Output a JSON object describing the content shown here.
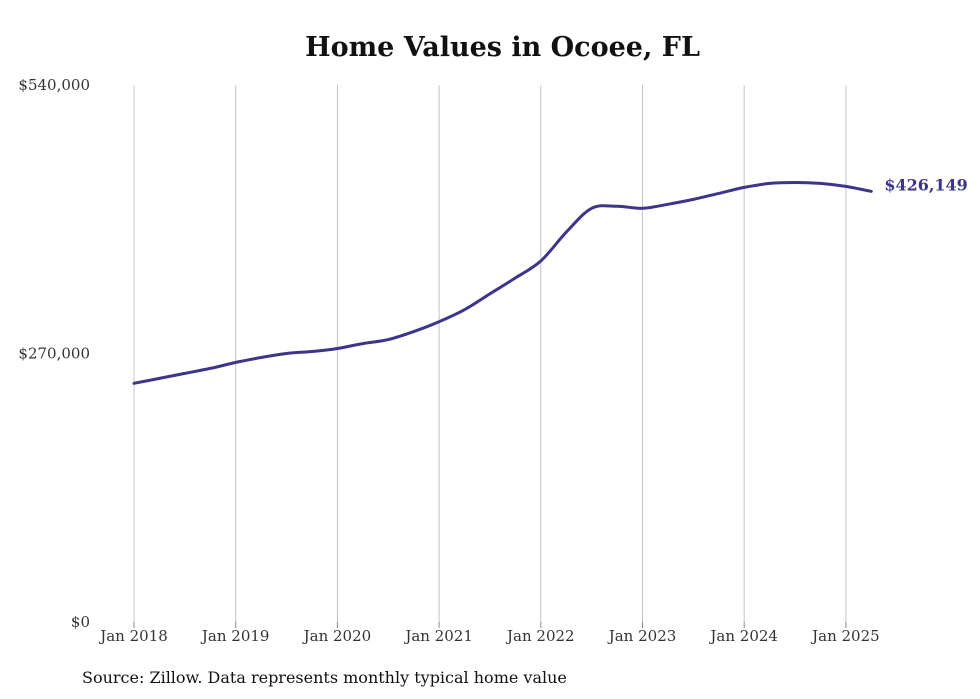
{
  "chart_data": {
    "type": "line",
    "title": "Home Values in Ocoee, FL",
    "source": "Source: Zillow. Data represents monthly typical home value",
    "ylim": [
      0,
      540000
    ],
    "y_ticks": [
      0,
      270000,
      540000
    ],
    "y_tick_labels": [
      "$0",
      "$270,000",
      "$540,000"
    ],
    "x_ticks": [
      "2018-01",
      "2019-01",
      "2020-01",
      "2021-01",
      "2022-01",
      "2023-01",
      "2024-01",
      "2025-01"
    ],
    "x_tick_labels": [
      "Jan 2018",
      "Jan 2019",
      "Jan 2020",
      "Jan 2021",
      "Jan 2022",
      "Jan 2023",
      "Jan 2024",
      "Jan 2025"
    ],
    "grid": "vertical",
    "line_color": "#3d348b",
    "end_label": "$426,149",
    "series": [
      {
        "x": [
          "2018-01",
          "2018-04",
          "2018-07",
          "2018-10",
          "2019-01",
          "2019-04",
          "2019-07",
          "2019-10",
          "2020-01",
          "2020-04",
          "2020-07",
          "2020-10",
          "2021-01",
          "2021-04",
          "2021-07",
          "2021-10",
          "2022-01",
          "2022-04",
          "2022-07",
          "2022-10",
          "2023-01",
          "2023-04",
          "2023-07",
          "2023-10",
          "2024-01",
          "2024-04",
          "2024-07",
          "2024-10",
          "2025-01",
          "2025-04"
        ],
        "values": [
          240000,
          245000,
          250000,
          255000,
          261000,
          266000,
          270000,
          272000,
          275000,
          280000,
          284000,
          292000,
          302000,
          314000,
          330000,
          346000,
          363000,
          392000,
          416000,
          418000,
          416000,
          420000,
          425000,
          431000,
          437000,
          441000,
          442000,
          441000,
          438000,
          433000
        ]
      }
    ]
  }
}
